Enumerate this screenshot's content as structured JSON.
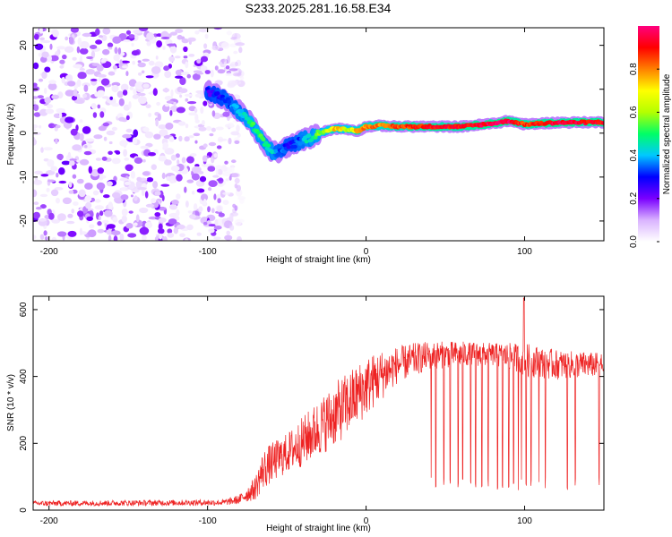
{
  "chart_data": [
    {
      "type": "heatmap",
      "title": "S233.2025.281.16.58.E34",
      "xlabel": "Height of straight line (km)",
      "ylabel": "Frequency (Hz)",
      "xlim": [
        -210,
        150
      ],
      "ylim": [
        -24.5,
        24
      ],
      "xticks": [
        -200,
        -100,
        0,
        100
      ],
      "yticks": [
        -20,
        -10,
        0,
        10,
        20
      ],
      "colorbar": {
        "label": "Normalized spectral amplitude",
        "range": [
          0,
          1
        ],
        "ticks": [
          "0.0",
          "0.2",
          "0.4",
          "0.6",
          "0.8"
        ],
        "colormap": [
          "#ffffff",
          "#d9b3ff",
          "#7a00ff",
          "#0000ff",
          "#00c8ff",
          "#00ff66",
          "#b4ff00",
          "#ffff00",
          "#ff8000",
          "#ff0000",
          "#ff007f"
        ]
      },
      "ridge": {
        "x": [
          -100,
          -90,
          -80,
          -72,
          -65,
          -60,
          -55,
          -50,
          -45,
          -40,
          -35,
          -30,
          -25,
          -20,
          -15,
          -10,
          -5,
          0,
          10,
          20,
          40,
          60,
          80,
          90,
          100,
          120,
          150
        ],
        "y": [
          9.5,
          8,
          5,
          2,
          -2,
          -4,
          -4.5,
          -3,
          -2.5,
          -1.5,
          -1,
          0,
          0.5,
          1,
          1,
          0.8,
          0.5,
          1.5,
          1.7,
          1.5,
          1.5,
          1.5,
          2.2,
          2.8,
          2,
          2.4,
          2.5
        ],
        "amplitude": [
          0.25,
          0.3,
          0.4,
          0.5,
          0.5,
          0.45,
          0.35,
          0.3,
          0.3,
          0.4,
          0.45,
          0.55,
          0.6,
          0.75,
          0.7,
          0.6,
          0.8,
          0.8,
          0.8,
          0.85,
          0.9,
          0.9,
          0.95,
          0.95,
          0.85,
          0.95,
          0.9
        ]
      },
      "noise_region": {
        "x_from": -210,
        "x_to": -78
      }
    },
    {
      "type": "line",
      "xlabel": "Height of straight line (km)",
      "ylabel": "SNR (10 * v/v)",
      "xlim": [
        -210,
        150
      ],
      "ylim": [
        0,
        640
      ],
      "xticks": [
        -200,
        -100,
        0,
        100
      ],
      "yticks": [
        0,
        200,
        400,
        600
      ],
      "color": "#ee2222",
      "envelope": {
        "x": [
          -210,
          -90,
          -80,
          -70,
          -65,
          -60,
          -50,
          -40,
          -30,
          -20,
          -10,
          0,
          10,
          20,
          30,
          40,
          60,
          80,
          90,
          100,
          120,
          150
        ],
        "low": [
          12,
          14,
          18,
          30,
          60,
          80,
          110,
          130,
          160,
          190,
          230,
          280,
          330,
          380,
          400,
          420,
          430,
          430,
          420,
          400,
          390,
          400
        ],
        "high": [
          28,
          32,
          45,
          100,
          180,
          200,
          230,
          280,
          330,
          380,
          420,
          460,
          480,
          490,
          500,
          505,
          505,
          500,
          500,
          500,
          480,
          470
        ]
      },
      "spike": {
        "x": 99.5,
        "y": 635
      },
      "dropouts_x": [
        41,
        44,
        49,
        53,
        58,
        61,
        66,
        69,
        73,
        77,
        83,
        86,
        90,
        93,
        96,
        98,
        101,
        104,
        109,
        113,
        127,
        132,
        147
      ]
    }
  ]
}
